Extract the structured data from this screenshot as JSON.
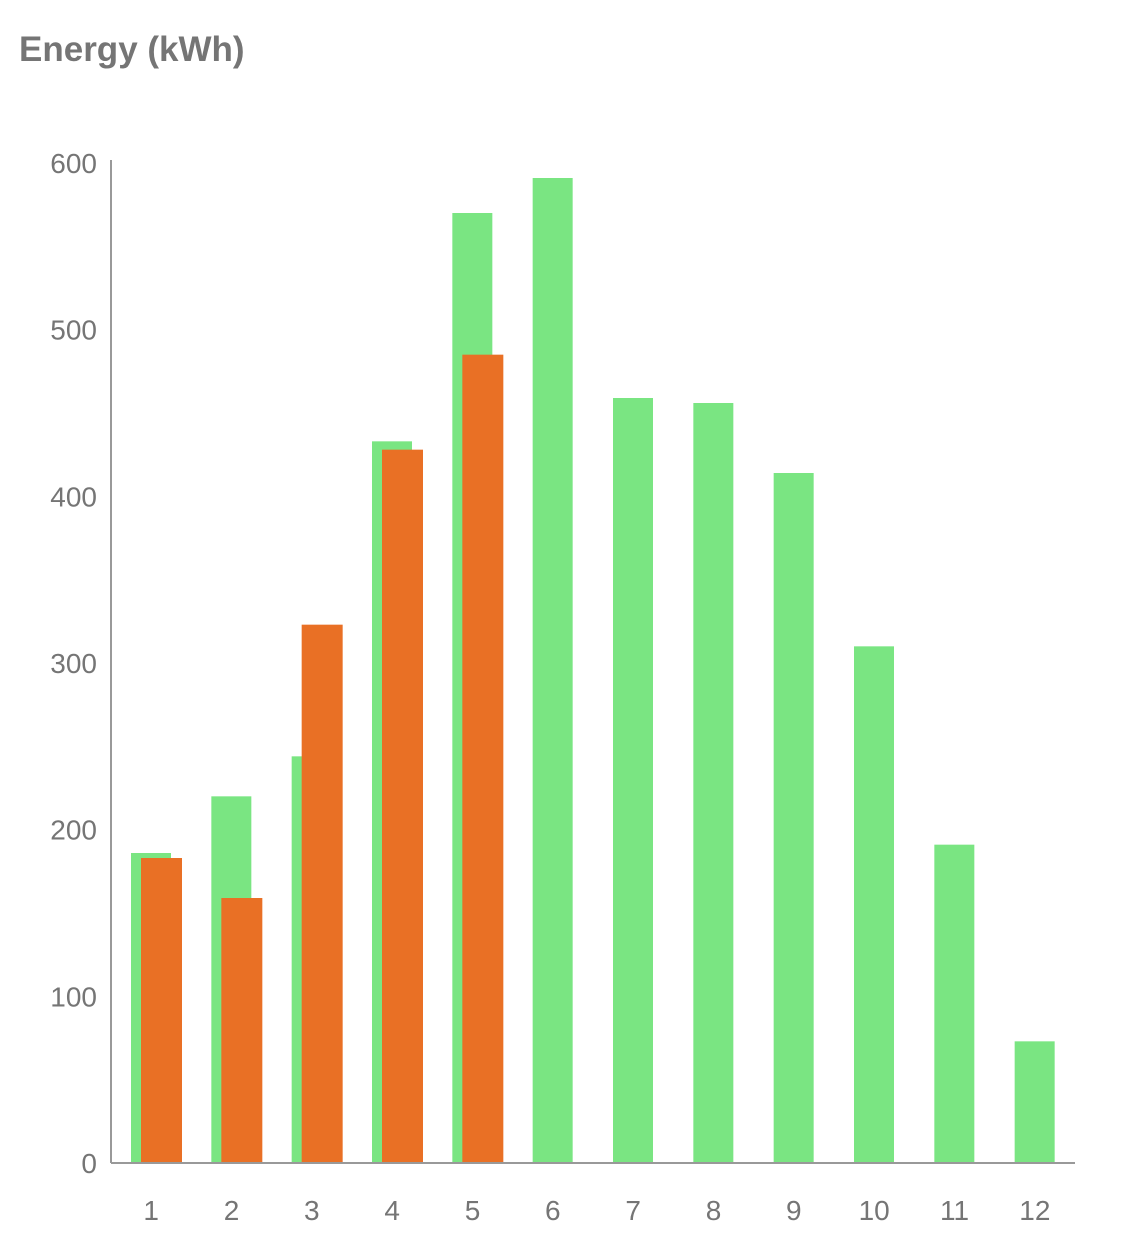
{
  "chart_data": {
    "type": "bar",
    "title": "Energy (kWh)",
    "xlabel": "",
    "ylabel": "",
    "categories": [
      "1",
      "2",
      "3",
      "4",
      "5",
      "6",
      "7",
      "8",
      "9",
      "10",
      "11",
      "12"
    ],
    "ylim": [
      0,
      600
    ],
    "yticks": [
      0,
      100,
      200,
      300,
      400,
      500,
      600
    ],
    "grid": false,
    "legend": "none",
    "series": [
      {
        "color": "#7ae582",
        "values": [
          186,
          220,
          244,
          433,
          570,
          591,
          459,
          456,
          414,
          310,
          191,
          73
        ]
      },
      {
        "color": "#e97025",
        "values": [
          183,
          159,
          323,
          428,
          485,
          null,
          null,
          null,
          null,
          null,
          null,
          null
        ]
      }
    ],
    "colors": {
      "axis": "#999999",
      "text": "#757575"
    }
  }
}
